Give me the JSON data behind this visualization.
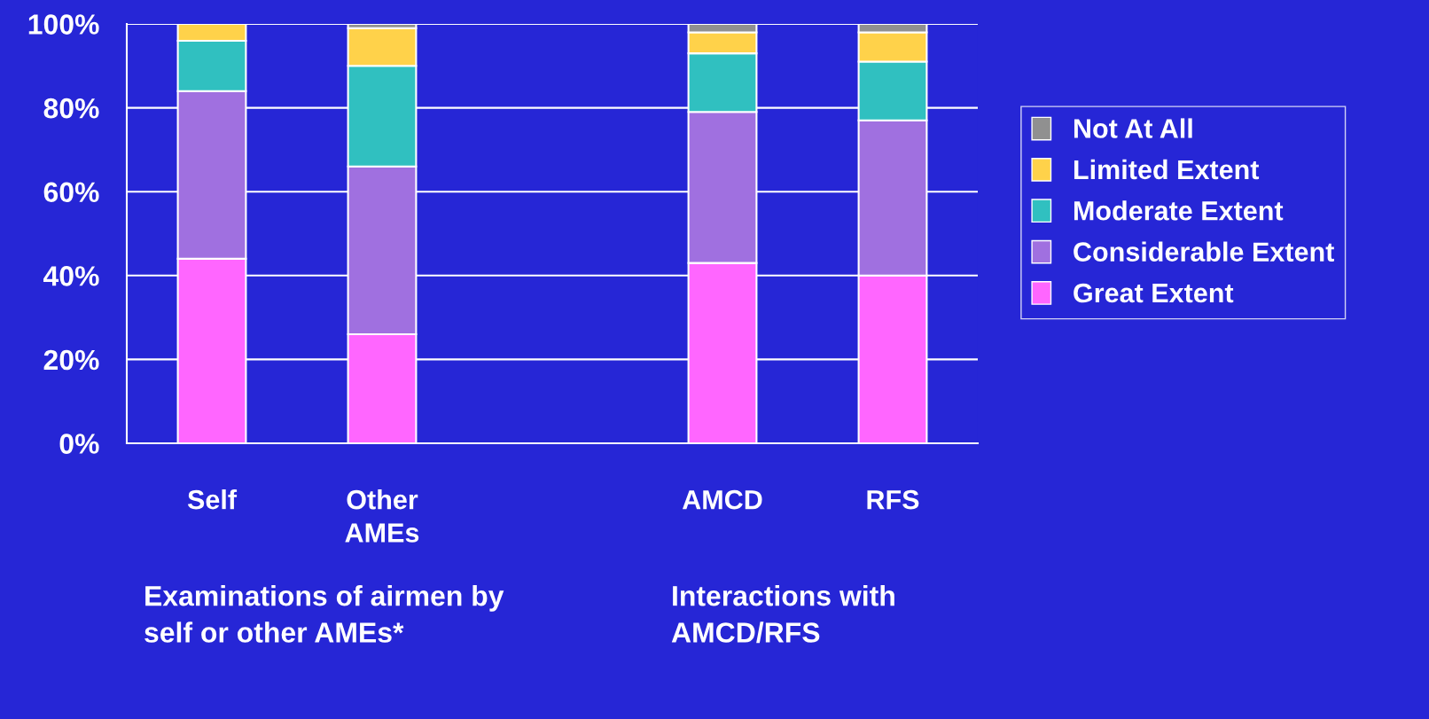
{
  "chart_data": {
    "type": "bar",
    "stacked": true,
    "categories": [
      "Self",
      "Other AMEs",
      null,
      "AMCD",
      "RFS"
    ],
    "series": [
      {
        "name": "Great Extent",
        "color": "#ff66ff",
        "values": [
          44,
          26,
          null,
          43,
          40
        ]
      },
      {
        "name": "Considerable Extent",
        "color": "#a070e0",
        "values": [
          40,
          40,
          null,
          36,
          37
        ]
      },
      {
        "name": "Moderate Extent",
        "color": "#30c0c0",
        "values": [
          12,
          24,
          null,
          14,
          14
        ]
      },
      {
        "name": "Limited Extent",
        "color": "#ffd24a",
        "values": [
          4,
          9,
          null,
          5,
          7
        ]
      },
      {
        "name": "Not At All",
        "color": "#909090",
        "values": [
          null,
          1,
          null,
          2,
          2
        ]
      }
    ],
    "ylim": [
      0,
      100
    ],
    "yticks": [
      {
        "value": 0,
        "label": "0%"
      },
      {
        "value": 20,
        "label": "20%"
      },
      {
        "value": 40,
        "label": "40%"
      },
      {
        "value": 60,
        "label": "60%"
      },
      {
        "value": 80,
        "label": "80%"
      },
      {
        "value": 100,
        "label": "100%"
      }
    ],
    "grid": "y",
    "legend": "right",
    "annotations": [
      "Examinations of airmen by self or other AMEs*",
      "Interactions with AMCD/RFS"
    ]
  }
}
